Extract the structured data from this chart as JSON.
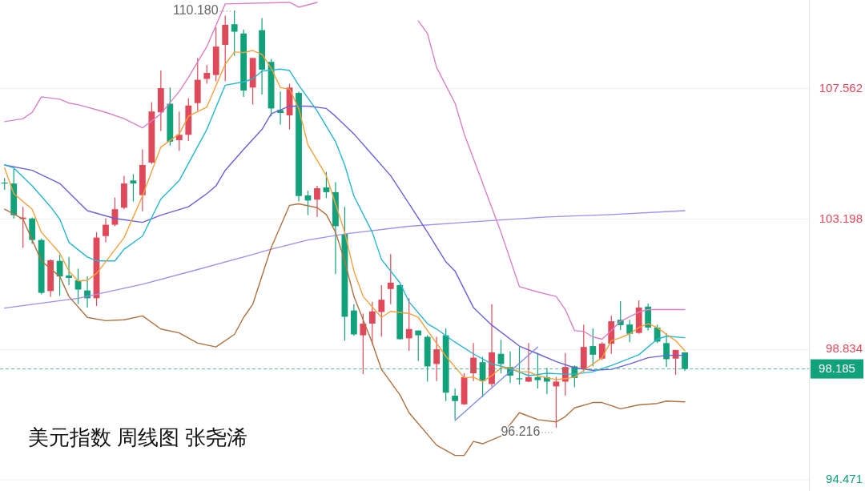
{
  "chart_data": {
    "type": "candlestick",
    "title": "美元指数 周线图 张尧浠",
    "categories": [
      null,
      null,
      null,
      null,
      null,
      null,
      null,
      null,
      null,
      null,
      null,
      null,
      null,
      null,
      null,
      null,
      null,
      null,
      null,
      null,
      null,
      null,
      null,
      null,
      null,
      null,
      null,
      null,
      null,
      null,
      null,
      null,
      null,
      null,
      null,
      null,
      null,
      null,
      null,
      null,
      null,
      null,
      null,
      null,
      null,
      null,
      null,
      null,
      null,
      null,
      null,
      null,
      null,
      null,
      null,
      null,
      null,
      null,
      null,
      null,
      null,
      null,
      null,
      null,
      null,
      null,
      null,
      null,
      null,
      null,
      null,
      null,
      null,
      null,
      null,
      null,
      null,
      null,
      null,
      null,
      null,
      null,
      null,
      null,
      null,
      null,
      null,
      null
    ],
    "ohlc": [
      [
        104.42,
        104.57,
        104.18,
        104.4
      ],
      [
        104.39,
        104.88,
        103.22,
        103.33
      ],
      [
        103.2,
        103.61,
        102.24,
        103.25
      ],
      [
        103.22,
        103.25,
        102.37,
        102.5
      ],
      [
        102.5,
        102.55,
        100.68,
        100.73
      ],
      [
        100.79,
        101.85,
        100.6,
        101.82
      ],
      [
        101.8,
        102.0,
        100.63,
        101.28
      ],
      [
        101.31,
        101.93,
        100.99,
        101.23
      ],
      [
        101.15,
        101.54,
        100.35,
        100.84
      ],
      [
        100.81,
        101.28,
        100.24,
        100.55
      ],
      [
        100.55,
        102.76,
        100.29,
        102.58
      ],
      [
        102.63,
        103.22,
        102.42,
        103.01
      ],
      [
        103.01,
        103.92,
        102.96,
        103.53
      ],
      [
        103.58,
        104.65,
        103.53,
        104.39
      ],
      [
        104.49,
        104.7,
        103.79,
        104.39
      ],
      [
        104.0,
        105.53,
        103.46,
        105.01
      ],
      [
        105.09,
        107.11,
        105.04,
        106.8
      ],
      [
        106.77,
        108.17,
        106.15,
        107.58
      ],
      [
        107.06,
        107.6,
        105.66,
        105.79
      ],
      [
        105.84,
        106.8,
        105.48,
        106.02
      ],
      [
        106.02,
        107.24,
        105.81,
        107.0
      ],
      [
        107.08,
        108.59,
        106.82,
        107.86
      ],
      [
        107.89,
        108.35,
        107.73,
        108.09
      ],
      [
        108.02,
        109.62,
        107.81,
        108.97
      ],
      [
        109.03,
        110.01,
        107.81,
        109.7
      ],
      [
        109.72,
        110.18,
        108.66,
        109.47
      ],
      [
        109.41,
        109.54,
        107.29,
        107.5
      ],
      [
        107.6,
        108.59,
        107.03,
        108.59
      ],
      [
        109.52,
        109.93,
        107.37,
        108.2
      ],
      [
        108.46,
        108.56,
        106.64,
        106.9
      ],
      [
        106.85,
        107.47,
        106.36,
        106.75
      ],
      [
        106.67,
        107.73,
        106.2,
        107.6
      ],
      [
        107.42,
        107.47,
        103.79,
        103.97
      ],
      [
        103.99,
        104.15,
        103.33,
        103.82
      ],
      [
        103.85,
        104.31,
        103.27,
        104.23
      ],
      [
        104.26,
        104.78,
        103.9,
        104.1
      ],
      [
        104.1,
        104.44,
        101.36,
        102.96
      ],
      [
        102.7,
        103.61,
        99.13,
        99.93
      ],
      [
        100.14,
        100.35,
        99.29,
        99.34
      ],
      [
        99.31,
        100.04,
        98.01,
        99.7
      ],
      [
        99.7,
        100.43,
        99.0,
        100.11
      ],
      [
        100.09,
        100.99,
        99.26,
        100.5
      ],
      [
        100.86,
        102.03,
        100.35,
        101.07
      ],
      [
        100.99,
        101.01,
        99.17,
        99.18
      ],
      [
        99.21,
        100.55,
        98.79,
        99.52
      ],
      [
        99.47,
        99.47,
        98.45,
        99.31
      ],
      [
        99.26,
        99.31,
        97.76,
        98.27
      ],
      [
        98.35,
        99.26,
        97.78,
        98.84
      ],
      [
        99.31,
        99.54,
        97.11,
        97.39
      ],
      [
        97.29,
        97.53,
        96.49,
        97.11
      ],
      [
        97.0,
        98.04,
        96.98,
        97.91
      ],
      [
        98.04,
        99.05,
        97.78,
        98.56
      ],
      [
        98.41,
        98.59,
        97.24,
        97.78
      ],
      [
        97.68,
        100.35,
        97.58,
        98.74
      ],
      [
        98.69,
        99.16,
        98.04,
        98.35
      ],
      [
        98.25,
        98.77,
        97.71,
        97.96
      ],
      [
        97.87,
        98.92,
        97.66,
        97.84
      ],
      [
        97.76,
        99.05,
        97.74,
        97.91
      ],
      [
        97.91,
        98.72,
        97.53,
        97.81
      ],
      [
        97.91,
        98.22,
        97.34,
        97.76
      ],
      [
        97.6,
        97.91,
        96.216,
        97.76
      ],
      [
        97.76,
        98.72,
        97.29,
        98.25
      ],
      [
        98.27,
        98.3,
        97.58,
        97.88
      ],
      [
        98.17,
        99.67,
        98.09,
        98.92
      ],
      [
        98.95,
        99.54,
        98.27,
        98.66
      ],
      [
        98.53,
        99.08,
        98.48,
        99.03
      ],
      [
        99.03,
        99.96,
        98.69,
        99.78
      ],
      [
        99.83,
        100.45,
        99.49,
        99.65
      ],
      [
        99.67,
        99.83,
        99.08,
        99.36
      ],
      [
        99.39,
        100.48,
        99.36,
        100.24
      ],
      [
        100.27,
        100.37,
        99.47,
        99.57
      ],
      [
        99.57,
        99.67,
        99.05,
        99.1
      ],
      [
        99.05,
        99.39,
        98.25,
        98.51
      ],
      [
        98.53,
        98.82,
        97.99,
        98.82
      ],
      [
        98.74,
        98.74,
        98.12,
        98.185
      ],
      null,
      null,
      null,
      null,
      null,
      null,
      null,
      null,
      null,
      null,
      null,
      null,
      null
    ],
    "colors": [
      "#12a27b",
      "#12a27b",
      "#e0495a",
      "#12a27b",
      "#12a27b",
      "#e0495a",
      "#12a27b",
      "#12a27b",
      "#12a27b",
      "#12a27b",
      "#e0495a",
      "#e0495a",
      "#e0495a",
      "#e0495a",
      "#12a27b",
      "#e0495a",
      "#e0495a",
      "#e0495a",
      "#12a27b",
      "#e0495a",
      "#e0495a",
      "#e0495a",
      "#e0495a",
      "#e0495a",
      "#e0495a",
      "#12a27b",
      "#12a27b",
      "#e0495a",
      "#12a27b",
      "#12a27b",
      "#12a27b",
      "#e0495a",
      "#12a27b",
      "#12a27b",
      "#e0495a",
      "#12a27b",
      "#12a27b",
      "#12a27b",
      "#12a27b",
      "#e0495a",
      "#e0495a",
      "#e0495a",
      "#e0495a",
      "#12a27b",
      "#e0495a",
      "#12a27b",
      "#12a27b",
      "#e0495a",
      "#12a27b",
      "#12a27b",
      "#e0495a",
      "#e0495a",
      "#12a27b",
      "#e0495a",
      "#12a27b",
      "#12a27b",
      "#12a27b",
      "#e0495a",
      "#12a27b",
      "#12a27b",
      "#e0495a",
      "#e0495a",
      "#12a27b",
      "#e0495a",
      "#12a27b",
      "#e0495a",
      "#e0495a",
      "#12a27b",
      "#12a27b",
      "#e0495a",
      "#12a27b",
      "#12a27b",
      "#12a27b",
      "#e0495a",
      "#12a27b",
      null,
      null,
      null,
      null,
      null,
      null,
      null,
      null,
      null,
      null,
      null,
      null,
      null
    ],
    "series": [
      {
        "type": "line",
        "color": "#a08ef0",
        "values": [
          100.22,
          null,
          null,
          null,
          null,
          null,
          null,
          null,
          100.55,
          null,
          null,
          null,
          null,
          null,
          null,
          101.02,
          null,
          null,
          null,
          null,
          null,
          101.51,
          null,
          null,
          null,
          null,
          101.93,
          null,
          null,
          102.19,
          null,
          null,
          null,
          102.5,
          null,
          null,
          null,
          102.7,
          null,
          null,
          null,
          null,
          null,
          null,
          102.96,
          null,
          null,
          null,
          null,
          null,
          103.09,
          null,
          null,
          null,
          null,
          null,
          null,
          null,
          null,
          103.27,
          null,
          null,
          null,
          null,
          null,
          null,
          103.35,
          null,
          null,
          null,
          null,
          null,
          null,
          null,
          103.48,
          null,
          null,
          null,
          null,
          null,
          null,
          null,
          null,
          null,
          null,
          null,
          null,
          null
        ]
      },
      {
        "type": "line",
        "color": "#da80c8",
        "values": [
          106.46,
          null,
          106.56,
          106.77,
          107.29,
          null,
          107.21,
          107.08,
          107.03,
          null,
          null,
          106.77,
          null,
          106.56,
          null,
          106.25,
          null,
          106.72,
          null,
          107.47,
          107.94,
          null,
          108.97,
          null,
          110.4,
          null,
          null,
          null,
          null,
          null,
          null,
          110.45,
          110.29,
          null,
          110.45,
          null,
          null,
          null,
          null,
          null,
          null,
          null,
          null,
          null,
          null,
          109.83,
          109.41,
          108.27,
          null,
          107.08,
          106.05,
          null,
          null,
          null,
          102.76,
          null,
          100.94,
          null,
          100.76,
          null,
          100.61,
          100.17,
          99.47,
          99.44,
          99.26,
          99.18,
          99.47,
          99.78,
          null,
          100.09,
          100.17,
          null,
          null,
          null,
          100.17,
          null,
          null,
          null,
          null,
          null,
          null,
          null,
          null,
          null,
          null,
          null,
          null,
          null
        ]
      },
      {
        "type": "line",
        "color": "#b0703f",
        "values": [
          103.53,
          null,
          103.2,
          102.5,
          101.8,
          null,
          101.28,
          100.61,
          null,
          99.91,
          null,
          99.8,
          null,
          99.83,
          null,
          99.96,
          null,
          99.52,
          null,
          99.39,
          null,
          99.05,
          null,
          98.92,
          null,
          99.34,
          99.91,
          100.35,
          null,
          102.24,
          null,
          103.66,
          103.71,
          null,
          103.58,
          103.35,
          102.76,
          101.8,
          100.61,
          null,
          99.05,
          98.17,
          null,
          97.32,
          96.72,
          null,
          null,
          95.63,
          null,
          95.29,
          95.29,
          95.76,
          95.68,
          null,
          95.94,
          null,
          96.72,
          null,
          96.49,
          null,
          96.41,
          96.59,
          96.88,
          null,
          97.06,
          97.06,
          null,
          96.85,
          null,
          96.98,
          null,
          97.03,
          97.11,
          null,
          97.08,
          null,
          null,
          null,
          null,
          null,
          null,
          null,
          null,
          null,
          null,
          null,
          null,
          null
        ]
      },
      {
        "type": "line",
        "color": "#6b60dc",
        "values": [
          105.01,
          null,
          null,
          104.83,
          null,
          null,
          104.39,
          null,
          null,
          103.48,
          null,
          null,
          103.22,
          null,
          null,
          103.09,
          null,
          103.33,
          null,
          null,
          103.61,
          null,
          104.05,
          104.31,
          104.83,
          null,
          105.53,
          null,
          106.2,
          106.72,
          null,
          106.98,
          null,
          106.98,
          null,
          106.9,
          106.64,
          null,
          106.05,
          null,
          105.35,
          null,
          104.65,
          null,
          103.71,
          null,
          102.76,
          null,
          101.77,
          101.46,
          null,
          100.24,
          null,
          99.65,
          null,
          null,
          98.95,
          null,
          98.69,
          null,
          98.43,
          null,
          98.22,
          null,
          98.14,
          null,
          98.17,
          null,
          98.35,
          null,
          98.56,
          null,
          98.64,
          null,
          98.64,
          null,
          null,
          null,
          null,
          null,
          null,
          null,
          null,
          null,
          null,
          null,
          null,
          null
        ]
      },
      {
        "type": "line",
        "color": "#26b6d2",
        "values": [
          105.01,
          104.91,
          null,
          104.31,
          null,
          103.61,
          103.2,
          102.42,
          null,
          101.93,
          101.8,
          null,
          101.8,
          102.19,
          null,
          102.63,
          null,
          103.87,
          null,
          104.49,
          null,
          null,
          106.2,
          null,
          107.68,
          null,
          107.79,
          107.89,
          108.15,
          null,
          108.22,
          108.17,
          107.68,
          null,
          106.82,
          null,
          105.79,
          105.01,
          103.97,
          null,
          102.76,
          101.85,
          null,
          101.07,
          100.43,
          null,
          99.7,
          99.52,
          null,
          99.08,
          null,
          98.69,
          null,
          98.35,
          null,
          98.2,
          null,
          97.96,
          null,
          98.04,
          null,
          98.01,
          98.01,
          null,
          98.09,
          null,
          98.3,
          null,
          null,
          98.66,
          null,
          99.18,
          99.28,
          null,
          99.23,
          null,
          null,
          null,
          null,
          null,
          null,
          null,
          null,
          null,
          null,
          null,
          null,
          null
        ]
      },
      {
        "type": "line",
        "color": "#f5a03c",
        "values": [
          104.91,
          104.05,
          null,
          103.53,
          102.76,
          null,
          102.06,
          101.46,
          101.13,
          101.15,
          101.38,
          101.77,
          null,
          102.58,
          null,
          103.97,
          null,
          105.61,
          null,
          106.05,
          106.64,
          null,
          106.95,
          null,
          108.38,
          108.79,
          108.77,
          108.84,
          108.71,
          108.25,
          107.6,
          107.55,
          106.9,
          105.68,
          null,
          104.65,
          103.71,
          102.76,
          101.46,
          100.61,
          null,
          99.91,
          100.11,
          null,
          100.04,
          99.91,
          99.47,
          null,
          98.61,
          null,
          97.89,
          97.91,
          97.76,
          97.96,
          98.22,
          98.22,
          98.09,
          98.09,
          97.96,
          97.89,
          97.83,
          97.86,
          97.91,
          98.14,
          98.35,
          98.56,
          99.13,
          99.23,
          99.36,
          99.57,
          99.7,
          99.57,
          99.34,
          99.13,
          98.79,
          null,
          null,
          null,
          null,
          null,
          null,
          null,
          null,
          null,
          null,
          null,
          null,
          null
        ]
      },
      {
        "type": "line",
        "color": "#7f8ff0",
        "values": [
          null,
          null,
          null,
          null,
          null,
          null,
          null,
          null,
          null,
          null,
          null,
          null,
          null,
          null,
          null,
          null,
          null,
          null,
          null,
          null,
          null,
          null,
          null,
          null,
          null,
          null,
          null,
          null,
          null,
          null,
          null,
          null,
          null,
          null,
          null,
          null,
          null,
          null,
          null,
          null,
          null,
          null,
          null,
          null,
          null,
          null,
          null,
          null,
          null,
          96.46,
          null,
          null,
          null,
          null,
          null,
          null,
          null,
          null,
          98.92,
          null,
          null,
          null,
          null,
          null,
          null,
          null,
          null,
          null,
          null,
          null,
          null,
          null,
          null,
          null,
          null,
          null,
          null,
          null,
          null,
          null,
          null,
          null,
          null,
          null,
          null,
          null,
          null,
          null
        ]
      }
    ],
    "ylim": [
      94.1,
      110.53
    ],
    "yticks": [
      107.562,
      103.198,
      98.834,
      94.471
    ],
    "tick_labels": "y",
    "grid": "y",
    "ref_lines": [
      {
        "axis": "y",
        "value": 98.185,
        "label": "98.185",
        "color": "#12a27b",
        "line_style": "dashed"
      }
    ],
    "annotations": [
      "110.180",
      "96.216"
    ]
  }
}
